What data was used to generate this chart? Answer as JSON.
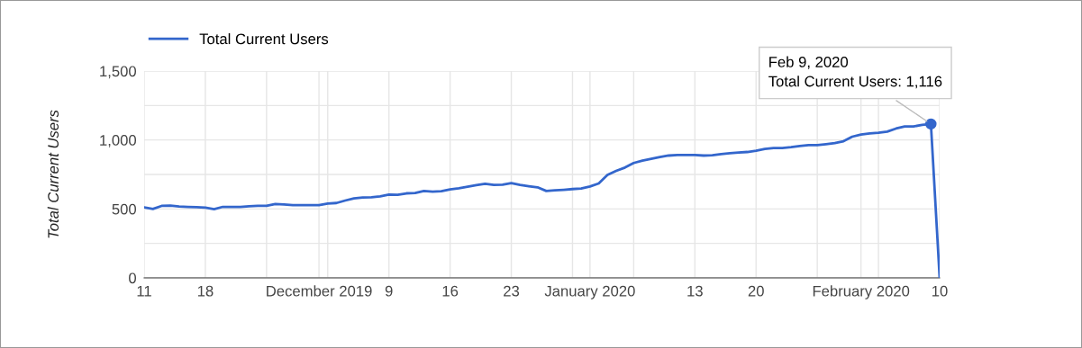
{
  "chart_data": {
    "type": "line",
    "ylabel": "Total Current Users",
    "legend": "top left",
    "grid": true,
    "marker": "none",
    "line_style": "solid",
    "x": [
      "2019-11-11",
      "2019-11-12",
      "2019-11-13",
      "2019-11-14",
      "2019-11-15",
      "2019-11-16",
      "2019-11-17",
      "2019-11-18",
      "2019-11-19",
      "2019-11-20",
      "2019-11-21",
      "2019-11-22",
      "2019-11-23",
      "2019-11-24",
      "2019-11-25",
      "2019-11-26",
      "2019-11-27",
      "2019-11-28",
      "2019-11-29",
      "2019-11-30",
      "2019-12-01",
      "2019-12-02",
      "2019-12-03",
      "2019-12-04",
      "2019-12-05",
      "2019-12-06",
      "2019-12-07",
      "2019-12-08",
      "2019-12-09",
      "2019-12-10",
      "2019-12-11",
      "2019-12-12",
      "2019-12-13",
      "2019-12-14",
      "2019-12-15",
      "2019-12-16",
      "2019-12-17",
      "2019-12-18",
      "2019-12-19",
      "2019-12-20",
      "2019-12-21",
      "2019-12-22",
      "2019-12-23",
      "2019-12-24",
      "2019-12-25",
      "2019-12-26",
      "2019-12-27",
      "2019-12-28",
      "2019-12-29",
      "2019-12-30",
      "2019-12-31",
      "2020-01-01",
      "2020-01-02",
      "2020-01-03",
      "2020-01-04",
      "2020-01-05",
      "2020-01-06",
      "2020-01-07",
      "2020-01-08",
      "2020-01-09",
      "2020-01-10",
      "2020-01-11",
      "2020-01-12",
      "2020-01-13",
      "2020-01-14",
      "2020-01-15",
      "2020-01-16",
      "2020-01-17",
      "2020-01-18",
      "2020-01-19",
      "2020-01-20",
      "2020-01-21",
      "2020-01-22",
      "2020-01-23",
      "2020-01-24",
      "2020-01-25",
      "2020-01-26",
      "2020-01-27",
      "2020-01-28",
      "2020-01-29",
      "2020-01-30",
      "2020-01-31",
      "2020-02-01",
      "2020-02-02",
      "2020-02-03",
      "2020-02-04",
      "2020-02-05",
      "2020-02-06",
      "2020-02-07",
      "2020-02-08",
      "2020-02-09",
      "2020-02-10"
    ],
    "series": [
      {
        "name": "Total Current Users",
        "color": "#3366cc",
        "values": [
          511,
          500,
          522,
          524,
          517,
          515,
          513,
          509,
          498,
          515,
          515,
          515,
          520,
          522,
          522,
          535,
          533,
          528,
          528,
          528,
          528,
          539,
          543,
          561,
          576,
          583,
          585,
          591,
          604,
          602,
          613,
          615,
          630,
          626,
          628,
          641,
          650,
          661,
          672,
          683,
          674,
          676,
          687,
          674,
          665,
          657,
          630,
          635,
          639,
          644,
          648,
          663,
          685,
          746,
          776,
          800,
          833,
          850,
          863,
          876,
          887,
          891,
          891,
          891,
          887,
          889,
          898,
          904,
          909,
          913,
          922,
          935,
          941,
          941,
          948,
          957,
          963,
          963,
          970,
          978,
          991,
          1024,
          1039,
          1048,
          1052,
          1061,
          1083,
          1098,
          1098,
          1109,
          1116,
          0
        ]
      }
    ],
    "xlim": [
      "2019-11-11",
      "2020-02-10"
    ],
    "xticks": [
      {
        "value": "2019-11-11",
        "label": "11"
      },
      {
        "value": "2019-11-18",
        "label": "18"
      },
      {
        "value": "2019-11-25",
        "label": null
      },
      {
        "value": "2019-12-01",
        "label": "December 2019"
      },
      {
        "value": "2019-12-02",
        "label": null
      },
      {
        "value": "2019-12-09",
        "label": "9"
      },
      {
        "value": "2019-12-16",
        "label": "16"
      },
      {
        "value": "2019-12-23",
        "label": "23"
      },
      {
        "value": "2019-12-30",
        "label": null
      },
      {
        "value": "2020-01-01",
        "label": "January 2020"
      },
      {
        "value": "2020-01-06",
        "label": null
      },
      {
        "value": "2020-01-13",
        "label": "13"
      },
      {
        "value": "2020-01-20",
        "label": "20"
      },
      {
        "value": "2020-01-27",
        "label": null
      },
      {
        "value": "2020-02-01",
        "label": "February 2020"
      },
      {
        "value": "2020-02-03",
        "label": null
      },
      {
        "value": "2020-02-10",
        "label": "10"
      }
    ],
    "ylim": [
      0,
      1500
    ],
    "yticks": [
      {
        "value": 0,
        "label": "0"
      },
      {
        "value": 250,
        "label": null
      },
      {
        "value": 500,
        "label": "500"
      },
      {
        "value": 750,
        "label": null
      },
      {
        "value": 1000,
        "label": "1,000"
      },
      {
        "value": 1250,
        "label": null
      },
      {
        "value": 1500,
        "label": "1,500"
      }
    ],
    "annotations": [
      {
        "text": "Feb 9, 2020\nTotal Current Users: 1,116",
        "x": "2020-02-09",
        "y": 1116
      }
    ]
  }
}
